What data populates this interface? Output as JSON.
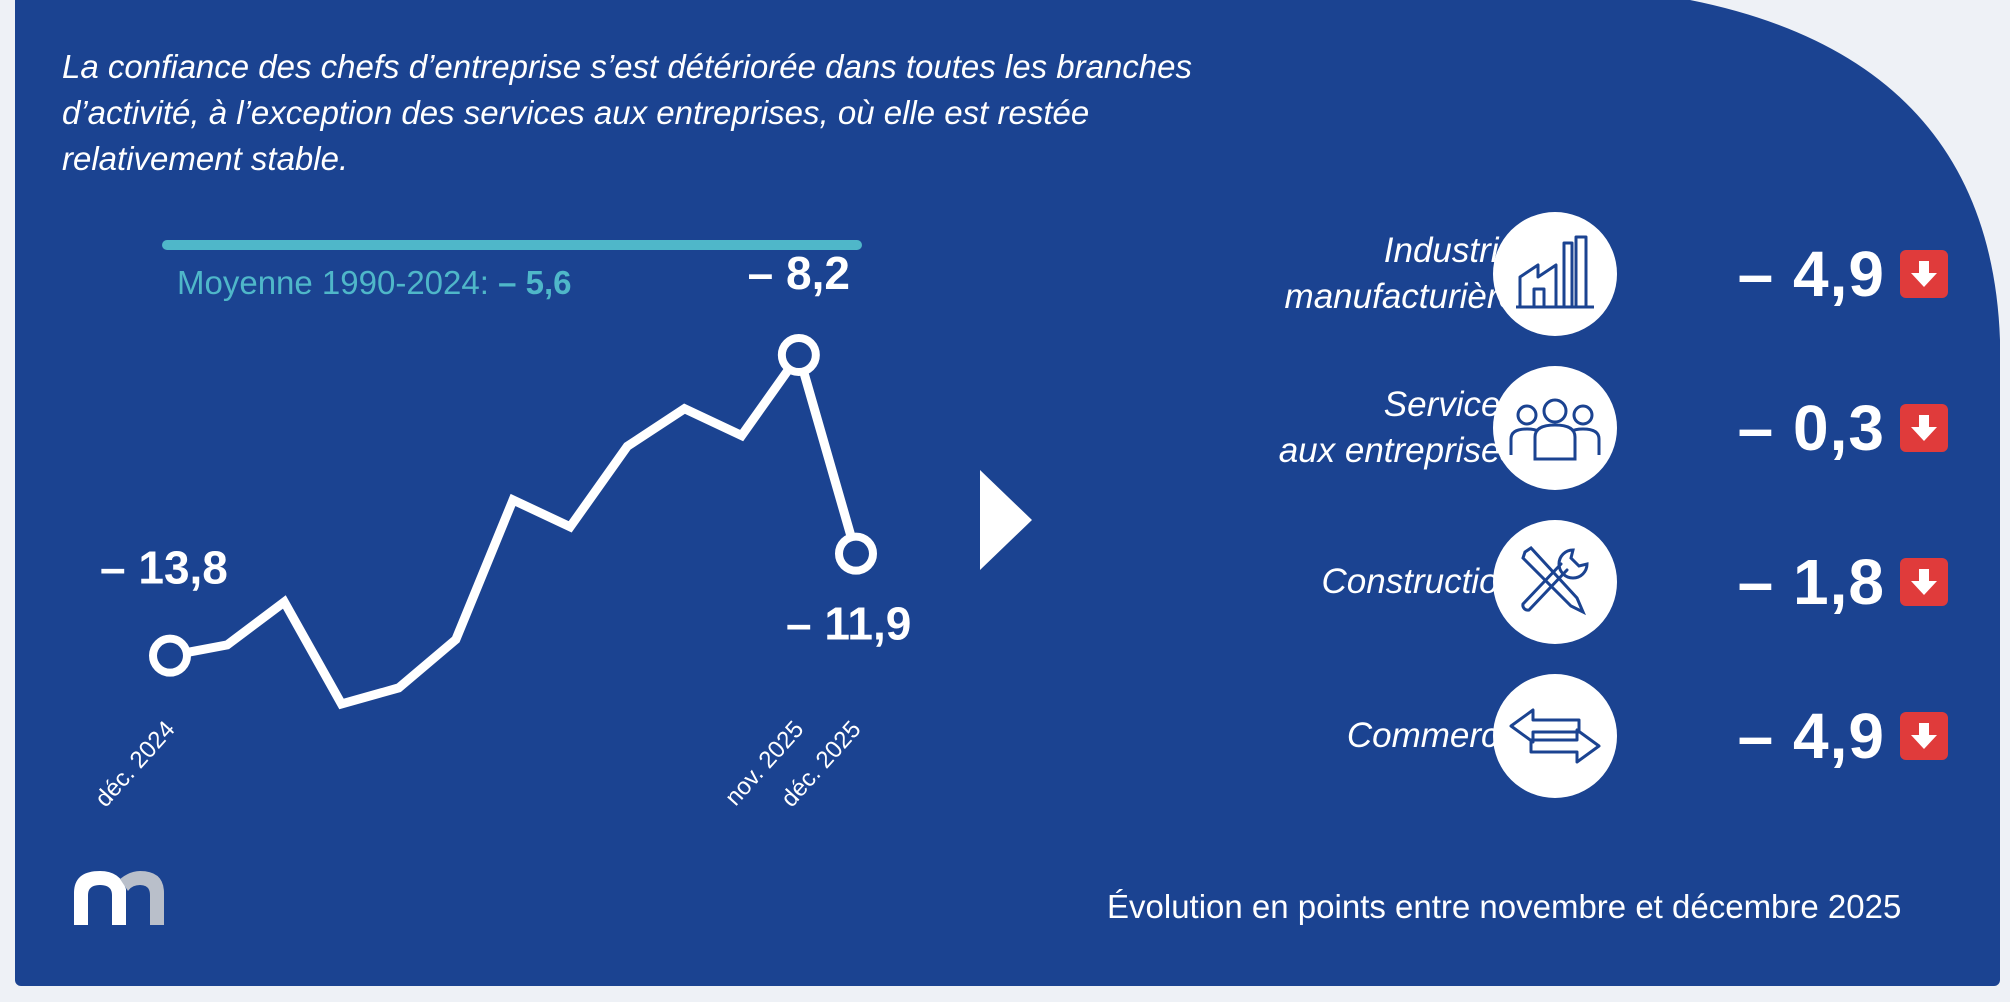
{
  "intro": "La confiance des chefs d’entreprise s’est détériorée dans toutes les branches d’activité, à l’exception des services aux entreprises, où elle est restée relativement stable.",
  "average": {
    "label": "Moyenne 1990-2024:",
    "value": "– 5,6"
  },
  "chart_data": {
    "type": "line",
    "x": [
      "déc. 2024",
      "",
      "",
      "",
      "",
      "",
      "",
      "",
      "",
      "",
      "",
      "nov. 2025",
      "déc. 2025"
    ],
    "values": [
      -13.8,
      -13.6,
      -12.8,
      -14.7,
      -14.4,
      -13.5,
      -10.9,
      -11.4,
      -9.9,
      -9.2,
      -9.7,
      -8.2,
      -11.9
    ],
    "labeled_points": [
      {
        "index": 0,
        "text": "– 13,8"
      },
      {
        "index": 11,
        "text": "– 8,2"
      },
      {
        "index": 12,
        "text": "– 11,9"
      }
    ],
    "tick_labels": [
      {
        "index": 0,
        "text": "déc. 2024"
      },
      {
        "index": 11,
        "text": "nov. 2025"
      },
      {
        "index": 12,
        "text": "déc. 2025"
      }
    ],
    "average_line": -5.6,
    "ylim": [
      -15,
      -5
    ],
    "grid": false
  },
  "sectors": [
    {
      "label": [
        "Industrie",
        "manufacturière"
      ],
      "value": "– 4,9",
      "icon": "factory-icon"
    },
    {
      "label": [
        "Services",
        "aux entreprises"
      ],
      "value": "– 0,3",
      "icon": "people-icon"
    },
    {
      "label": [
        "Construction"
      ],
      "value": "– 1,8",
      "icon": "tools-icon"
    },
    {
      "label": [
        "Commerce"
      ],
      "value": "– 4,9",
      "icon": "exchange-arrows-icon"
    }
  ],
  "footnote": "Évolution en points entre novembre et décembre 2025",
  "colors": {
    "background": "#1b4391",
    "accent": "#4fb7c9",
    "down": "#e03b3b",
    "page": "#eef1f6"
  }
}
